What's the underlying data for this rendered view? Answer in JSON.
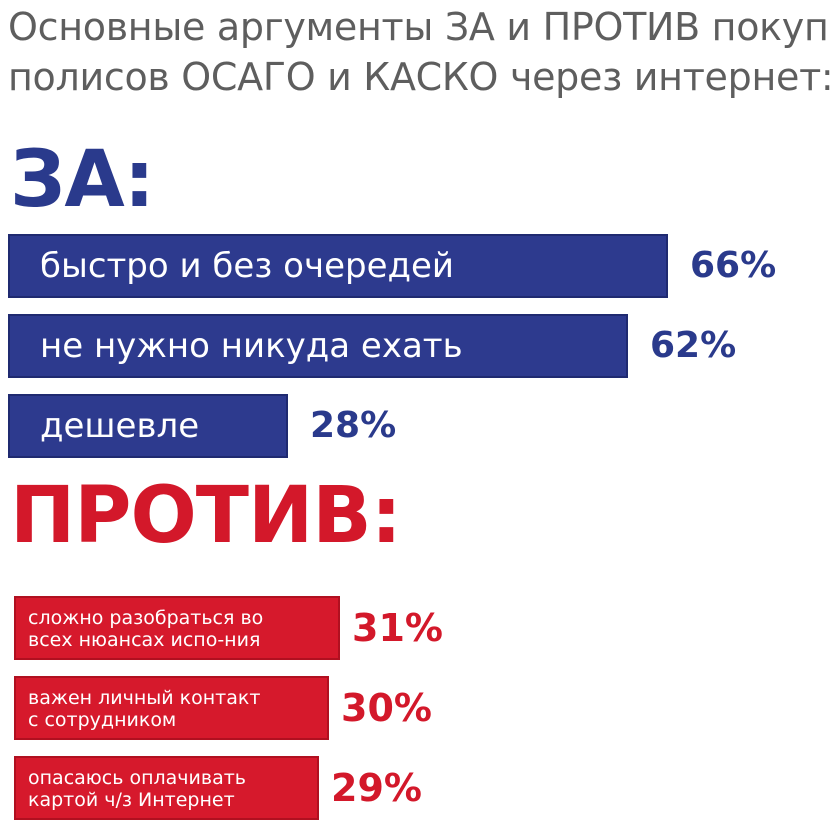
{
  "title_line1": "Основные аргументы ЗА и ПРОТИВ покуп",
  "title_line2": "полисов ОСАГО и КАСКО через интернет:",
  "colors": {
    "for": "#2d3a8e",
    "against": "#d6192c",
    "title": "#5e5e5e"
  },
  "chart_data": [
    {
      "type": "bar",
      "title": "ЗА:",
      "categories": [
        "быстро и без очередей",
        "не нужно никуда ехать",
        "дешевле"
      ],
      "values": [
        66,
        62,
        28
      ],
      "value_labels": [
        "66%",
        "62%",
        "28%"
      ]
    },
    {
      "type": "bar",
      "title": "ПРОТИВ:",
      "categories": [
        [
          "сложно разобраться во",
          "всех нюансах испо-ния"
        ],
        [
          "важен личный контакт",
          "с сотрудником"
        ],
        [
          "опасаюсь оплачивать",
          "картой ч/з Интернет"
        ]
      ],
      "values": [
        31,
        30,
        29
      ],
      "value_labels": [
        "31%",
        "30%",
        "29%"
      ]
    }
  ]
}
